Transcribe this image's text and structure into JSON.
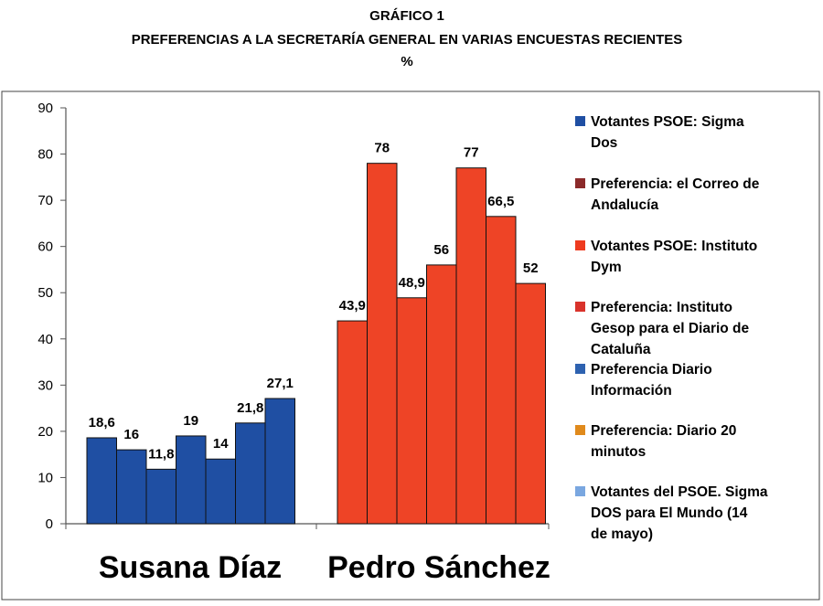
{
  "chart_data": {
    "type": "bar",
    "title": "GRÁFICO 1",
    "subtitle": "PREFERENCIAS A LA SECRETARÍA GENERAL EN VARIAS ENCUESTAS RECIENTES",
    "unit": "%",
    "categories": [
      "Susana Díaz",
      "Pedro Sánchez"
    ],
    "ylim": [
      0,
      90
    ],
    "yticks": [
      0,
      10,
      20,
      30,
      40,
      50,
      60,
      70,
      80,
      90
    ],
    "xlabel": "",
    "ylabel": "",
    "grid": false,
    "legend_position": "right",
    "series": [
      {
        "name": "Votantes PSOE: Sigma Dos",
        "legend_lines": [
          "Votantes PSOE: Sigma",
          "Dos"
        ],
        "swatch": "#1f4fa3",
        "values": [
          18.6,
          43.9
        ],
        "labels": [
          "18,6",
          "43,9"
        ]
      },
      {
        "name": "Preferencia: el Correo de Andalucía",
        "legend_lines": [
          "Preferencia: el Correo de",
          "Andalucía"
        ],
        "swatch": "#8b2a2a",
        "values": [
          16,
          78
        ],
        "labels": [
          "16",
          "78"
        ]
      },
      {
        "name": "Votantes PSOE: Instituto Dym",
        "legend_lines": [
          "Votantes PSOE: Instituto",
          "Dym"
        ],
        "swatch": "#ee3b1f",
        "values": [
          11.8,
          48.9
        ],
        "labels": [
          "11,8",
          "48,9"
        ]
      },
      {
        "name": "Preferencia: Instituto Gesop para el Diario de Cataluña",
        "legend_lines": [
          "Preferencia: Instituto",
          "Gesop para el Diario de",
          "Cataluña"
        ],
        "swatch": "#d9332b",
        "values": [
          19,
          56
        ],
        "labels": [
          "19",
          "56"
        ]
      },
      {
        "name": "Preferencia Diario Información",
        "legend_lines": [
          "Preferencia Diario",
          "Información"
        ],
        "swatch": "#2e62b0",
        "values": [
          14,
          77
        ],
        "labels": [
          "14",
          "77"
        ]
      },
      {
        "name": "Preferencia: Diario 20 minutos",
        "legend_lines": [
          "Preferencia: Diario 20",
          "minutos"
        ],
        "swatch": "#e08a1c",
        "values": [
          21.8,
          66.5
        ],
        "labels": [
          "21,8",
          "66,5"
        ]
      },
      {
        "name": "Votantes del PSOE. Sigma DOS para El Mundo (14 de mayo)",
        "legend_lines": [
          "Votantes del PSOE. Sigma",
          "DOS para El Mundo (14",
          "de mayo)"
        ],
        "swatch": "#7aa7e0",
        "values": [
          27.1,
          52
        ],
        "labels": [
          "27,1",
          "52"
        ]
      }
    ],
    "category_colors": [
      "#1f4fa3",
      "#ee4426"
    ]
  }
}
